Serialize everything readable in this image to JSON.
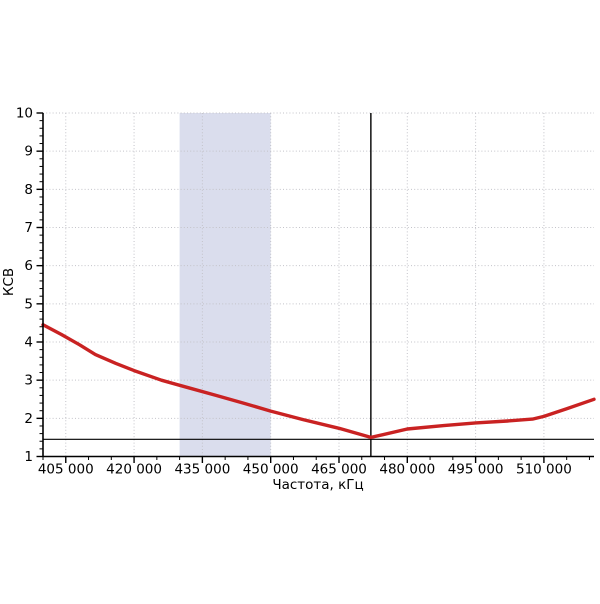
{
  "window": {
    "background": "#ffffff"
  },
  "chart_data": {
    "type": "line",
    "title": "",
    "xlabel": "Частота, кГц",
    "ylabel": "КСВ",
    "xlim": [
      400000,
      521000
    ],
    "ylim": [
      1,
      10
    ],
    "x_major_ticks": [
      405000,
      420000,
      435000,
      450000,
      465000,
      480000,
      495000,
      510000
    ],
    "x_tick_labels": [
      "405 000",
      "420 000",
      "435 000",
      "450 000",
      "465 000",
      "480 000",
      "495 000",
      "510 000"
    ],
    "x_minor_step": 5000,
    "y_major_ticks": [
      1,
      2,
      3,
      4,
      5,
      6,
      7,
      8,
      9,
      10
    ],
    "y_tick_labels": [
      "1",
      "2",
      "3",
      "4",
      "5",
      "6",
      "7",
      "8",
      "9",
      "10"
    ],
    "y_minor_step": 0.2,
    "grid": {
      "show": true,
      "style": "dotted",
      "color": "#c3c3c9"
    },
    "highlight_band": {
      "x_start": 430000,
      "x_end": 450000,
      "color": "#dadded"
    },
    "cursor_vline_x": 472000,
    "reference_hline_y": 1.45,
    "marker_color": "#000000",
    "axis_color": "#000000",
    "series": [
      {
        "name": "КСВ",
        "color": "#c92222",
        "stroke_width": 3.4,
        "points": [
          [
            400000,
            4.45
          ],
          [
            404000,
            4.2
          ],
          [
            408000,
            3.93
          ],
          [
            411500,
            3.67
          ],
          [
            416000,
            3.44
          ],
          [
            420000,
            3.25
          ],
          [
            426000,
            3.0
          ],
          [
            432000,
            2.8
          ],
          [
            438000,
            2.6
          ],
          [
            444000,
            2.4
          ],
          [
            450000,
            2.19
          ],
          [
            457000,
            1.97
          ],
          [
            465000,
            1.74
          ],
          [
            472000,
            1.5
          ],
          [
            480000,
            1.72
          ],
          [
            488000,
            1.81
          ],
          [
            495000,
            1.88
          ],
          [
            502000,
            1.93
          ],
          [
            507500,
            1.98
          ],
          [
            510000,
            2.05
          ],
          [
            515000,
            2.25
          ],
          [
            521000,
            2.5
          ]
        ]
      }
    ]
  }
}
